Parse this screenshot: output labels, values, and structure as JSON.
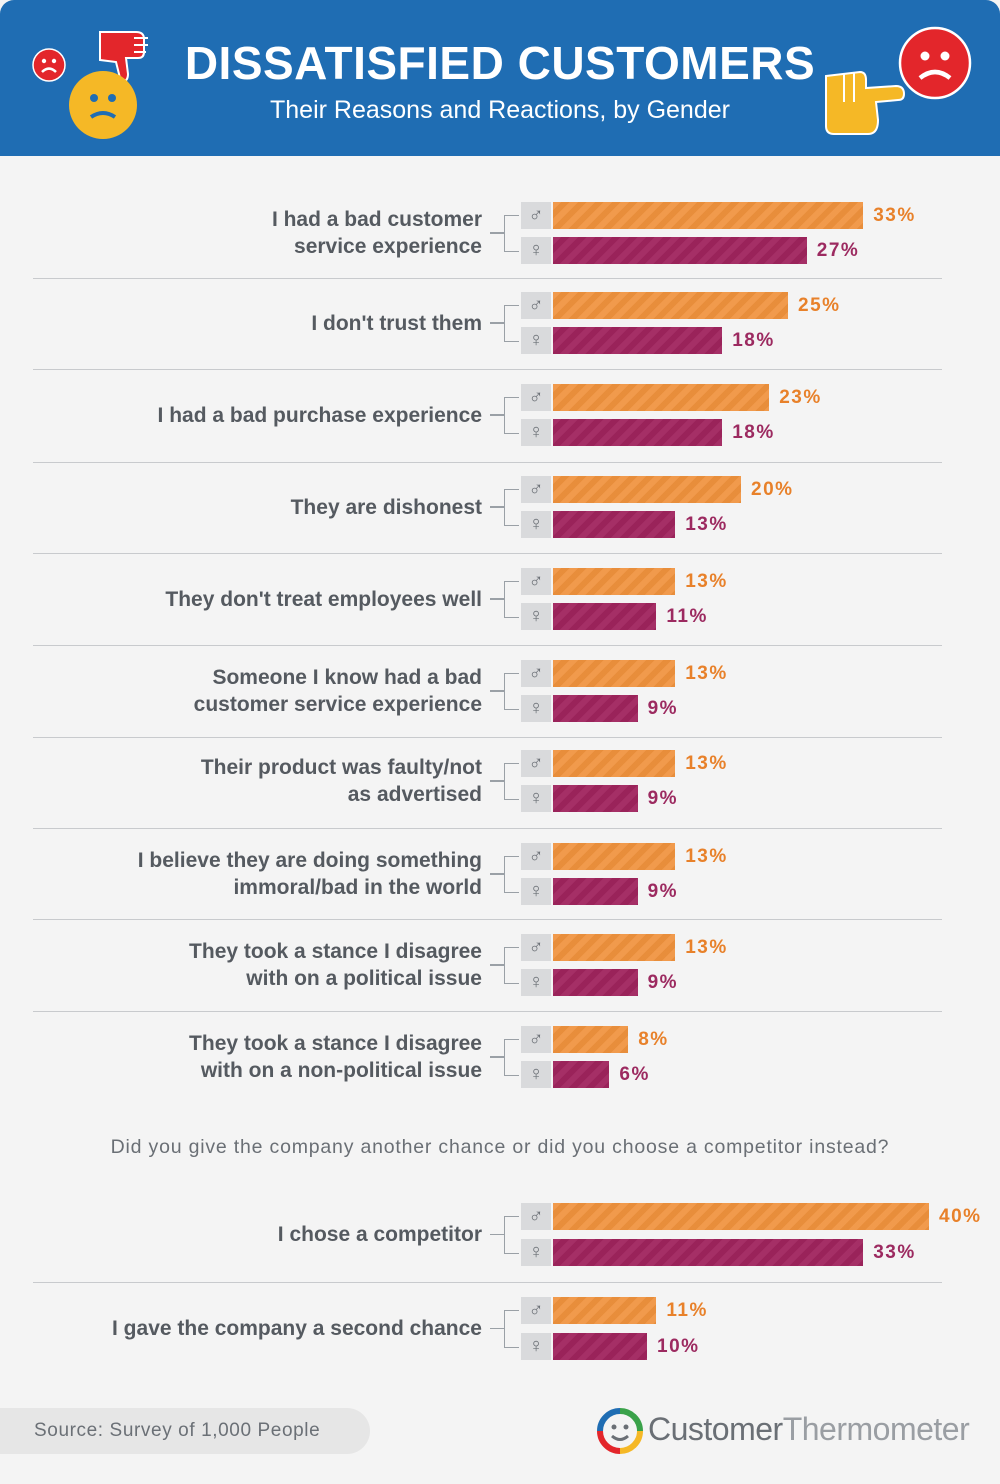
{
  "header": {
    "title": "DISSATISFIED CUSTOMERS",
    "subtitle": "Their Reasons and Reactions, by Gender"
  },
  "colors": {
    "header_bg": "#1f6db3",
    "male": "#f0923d",
    "female": "#a0245e"
  },
  "legend": {
    "male_symbol": "♂",
    "female_symbol": "♀"
  },
  "chart_data": [
    {
      "type": "bar",
      "orientation": "horizontal",
      "title": "",
      "categories": [
        [
          "I had a bad customer",
          "service experience"
        ],
        [
          "I don't trust them"
        ],
        [
          "I had a bad purchase experience"
        ],
        [
          "They are dishonest"
        ],
        [
          "They don't treat employees well"
        ],
        [
          "Someone I know had a bad",
          "customer service experience"
        ],
        [
          "Their product was faulty/not",
          "as advertised"
        ],
        [
          "I believe they are doing something",
          "immoral/bad in the world"
        ],
        [
          "They took a stance I disagree",
          "with on a political issue"
        ],
        [
          "They took a stance I disagree",
          "with on a non-political issue"
        ]
      ],
      "series": [
        {
          "name": "♂",
          "values": [
            33,
            25,
            23,
            20,
            13,
            13,
            13,
            13,
            13,
            8
          ],
          "labels": [
            "33%",
            "25%",
            "23%",
            "20%",
            "13%",
            "13%",
            "13%",
            "13%",
            "13%",
            "8%"
          ]
        },
        {
          "name": "♀",
          "values": [
            27,
            18,
            18,
            13,
            11,
            9,
            9,
            9,
            9,
            6
          ],
          "labels": [
            "27%",
            "18%",
            "18%",
            "13%",
            "11%",
            "9%",
            "9%",
            "9%",
            "9%",
            "6%"
          ]
        }
      ],
      "unit": "%"
    },
    {
      "type": "bar",
      "orientation": "horizontal",
      "title": "Did you give the company another chance or did you choose a competitor instead?",
      "categories": [
        [
          "I chose a competitor"
        ],
        [
          "I gave the company a second chance"
        ]
      ],
      "series": [
        {
          "name": "♂",
          "values": [
            40,
            11
          ],
          "labels": [
            "40%",
            "11%"
          ]
        },
        {
          "name": "♀",
          "values": [
            33,
            10
          ],
          "labels": [
            "33%",
            "10%"
          ]
        }
      ],
      "unit": "%"
    }
  ],
  "footer": {
    "source": "Source: Survey of 1,000 People",
    "brand_bold": "Customer",
    "brand_light": "Thermometer"
  }
}
